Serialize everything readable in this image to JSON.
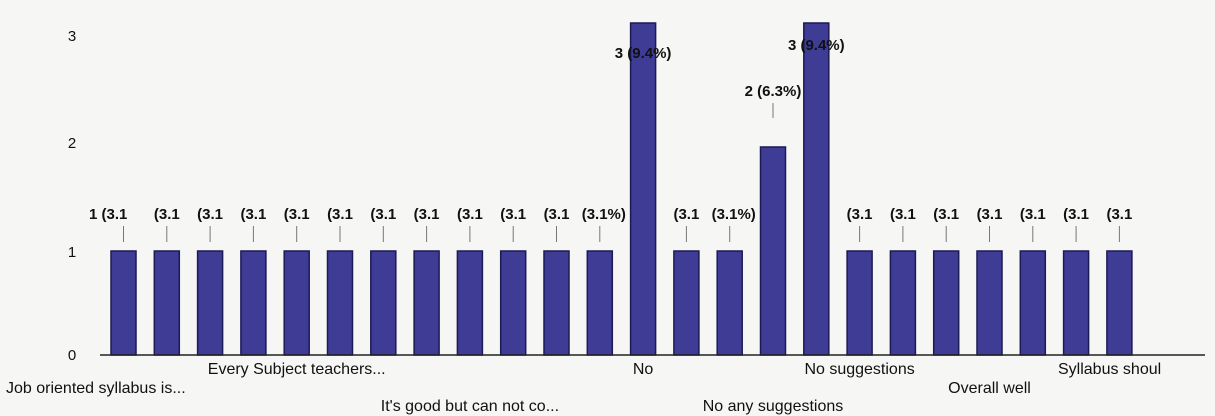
{
  "chart_data": {
    "type": "bar",
    "bar_color": "#3f3c96",
    "ylim": [
      0,
      3
    ],
    "y_ticks": [
      "0",
      "1",
      "2",
      "3"
    ],
    "categories": [
      "Job oriented syllabus is...",
      "",
      "",
      "",
      "Every Subject teachers...",
      "",
      "",
      "",
      "It's good but can not co...",
      "",
      "",
      "",
      "No",
      "",
      "",
      "No any suggestions",
      "",
      "No suggestions",
      "",
      "",
      "Overall well",
      "",
      "Syllabus shoul",
      ""
    ],
    "values": [
      1,
      1,
      1,
      1,
      1,
      1,
      1,
      1,
      1,
      1,
      1,
      1,
      3,
      1,
      1,
      2,
      3,
      1,
      1,
      1,
      1,
      1,
      1,
      1
    ],
    "data_labels": [
      "1 (3.1",
      "(3.1",
      "(3.1",
      "(3.1",
      "(3.1",
      "(3.1",
      "(3.1",
      "(3.1",
      "(3.1",
      "(3.1",
      "(3.1",
      "(3.1%)",
      "3 (9.4%)",
      "(3.1",
      "(3.1%)",
      "2 (6.3%)",
      "3 (9.4%)",
      "(3.1",
      "(3.1",
      "(3.1",
      "(3.1",
      "(3.1",
      "(3.1",
      "(3.1"
    ]
  }
}
